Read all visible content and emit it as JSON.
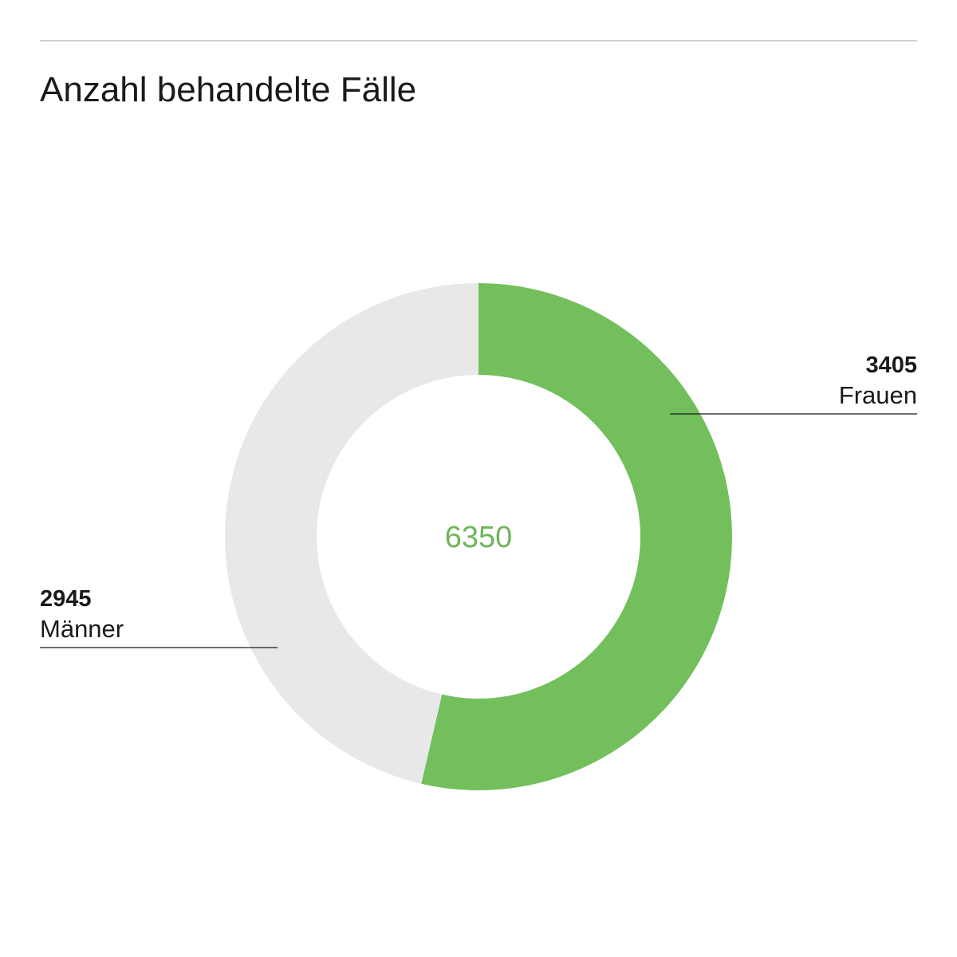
{
  "chart_data": {
    "type": "pie",
    "variant": "donut",
    "title": "Anzahl behandelte Fälle",
    "total": 6350,
    "total_label": "6350",
    "series": [
      {
        "name": "Frauen",
        "value": 3405,
        "value_label": "3405",
        "color": "#72bf5c",
        "label_side": "right"
      },
      {
        "name": "Männer",
        "value": 2945,
        "value_label": "2945",
        "color": "#e8e8e8",
        "label_side": "left"
      }
    ],
    "center_color": "#6fb55b",
    "leader_line_color": "#1a1a1a",
    "rule_color": "#d0d0d0"
  }
}
